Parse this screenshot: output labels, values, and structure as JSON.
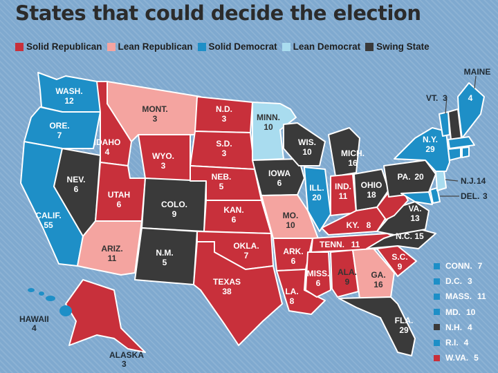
{
  "title": "States that could decide the election",
  "legend": [
    {
      "label": "Solid Republican",
      "color": "#c8303b"
    },
    {
      "label": "Lean Republican",
      "color": "#f4a4a0"
    },
    {
      "label": "Solid Democrat",
      "color": "#1e8fc7"
    },
    {
      "label": "Lean Democrat",
      "color": "#a9dcef"
    },
    {
      "label": "Swing State",
      "color": "#3a3a3a"
    }
  ],
  "states": {
    "wa": {
      "name": "WASH.",
      "votes": "12"
    },
    "or": {
      "name": "ORE.",
      "votes": "7"
    },
    "ca": {
      "name": "CALIF.",
      "votes": "55"
    },
    "nv": {
      "name": "NEV.",
      "votes": "6"
    },
    "id": {
      "name": "IDAHO",
      "votes": "4"
    },
    "mt": {
      "name": "MONT.",
      "votes": "3"
    },
    "wy": {
      "name": "WYO.",
      "votes": "3"
    },
    "ut": {
      "name": "UTAH",
      "votes": "6"
    },
    "az": {
      "name": "ARIZ.",
      "votes": "11"
    },
    "co": {
      "name": "COLO.",
      "votes": "9"
    },
    "nm": {
      "name": "N.M.",
      "votes": "5"
    },
    "nd": {
      "name": "N.D.",
      "votes": "3"
    },
    "sd": {
      "name": "S.D.",
      "votes": "3"
    },
    "ne": {
      "name": "NEB.",
      "votes": "5"
    },
    "ks": {
      "name": "KAN.",
      "votes": "6"
    },
    "ok": {
      "name": "OKLA.",
      "votes": "7"
    },
    "tx": {
      "name": "TEXAS",
      "votes": "38"
    },
    "mn": {
      "name": "MINN.",
      "votes": "10"
    },
    "ia": {
      "name": "IOWA",
      "votes": "6"
    },
    "mo": {
      "name": "MO.",
      "votes": "10"
    },
    "ar": {
      "name": "ARK.",
      "votes": "6"
    },
    "la": {
      "name": "LA.",
      "votes": "8"
    },
    "wi": {
      "name": "WIS.",
      "votes": "10"
    },
    "il": {
      "name": "ILL.",
      "votes": "20"
    },
    "mi": {
      "name": "MICH.",
      "votes": "16"
    },
    "in": {
      "name": "IND.",
      "votes": "11"
    },
    "oh": {
      "name": "OHIO",
      "votes": "18"
    },
    "ky": {
      "name": "KY.",
      "votes": "8"
    },
    "tn": {
      "name": "TENN.",
      "votes": "11"
    },
    "ms": {
      "name": "MISS.",
      "votes": "6"
    },
    "al": {
      "name": "ALA.",
      "votes": "9"
    },
    "ga": {
      "name": "GA.",
      "votes": "16"
    },
    "fl": {
      "name": "FLA.",
      "votes": "29"
    },
    "sc": {
      "name": "S.C.",
      "votes": "9"
    },
    "nc": {
      "name": "N.C.",
      "votes": "15"
    },
    "va": {
      "name": "VA.",
      "votes": "13"
    },
    "pa": {
      "name": "PA.",
      "votes": "20"
    },
    "ny": {
      "name": "N.Y.",
      "votes": "29"
    },
    "me": {
      "name": "MAINE",
      "votes": "4"
    },
    "vt": {
      "name": "VT.",
      "votes": "3"
    },
    "nj": {
      "name": "N.J.",
      "votes": "14"
    },
    "de": {
      "name": "DEL.",
      "votes": "3"
    },
    "hi": {
      "name": "HAWAII",
      "votes": "4"
    },
    "ak": {
      "name": "ALASKA",
      "votes": "3"
    }
  },
  "small_states": [
    {
      "label": "CONN.",
      "votes": "7",
      "color": "#1e8fc7"
    },
    {
      "label": "D.C.",
      "votes": "3",
      "color": "#1e8fc7"
    },
    {
      "label": "MASS.",
      "votes": "11",
      "color": "#1e8fc7"
    },
    {
      "label": "MD.",
      "votes": "10",
      "color": "#1e8fc7"
    },
    {
      "label": "N.H.",
      "votes": "4",
      "color": "#3a3a3a"
    },
    {
      "label": "R.I.",
      "votes": "4",
      "color": "#1e8fc7"
    },
    {
      "label": "W.VA.",
      "votes": "5",
      "color": "#c8303b"
    }
  ]
}
